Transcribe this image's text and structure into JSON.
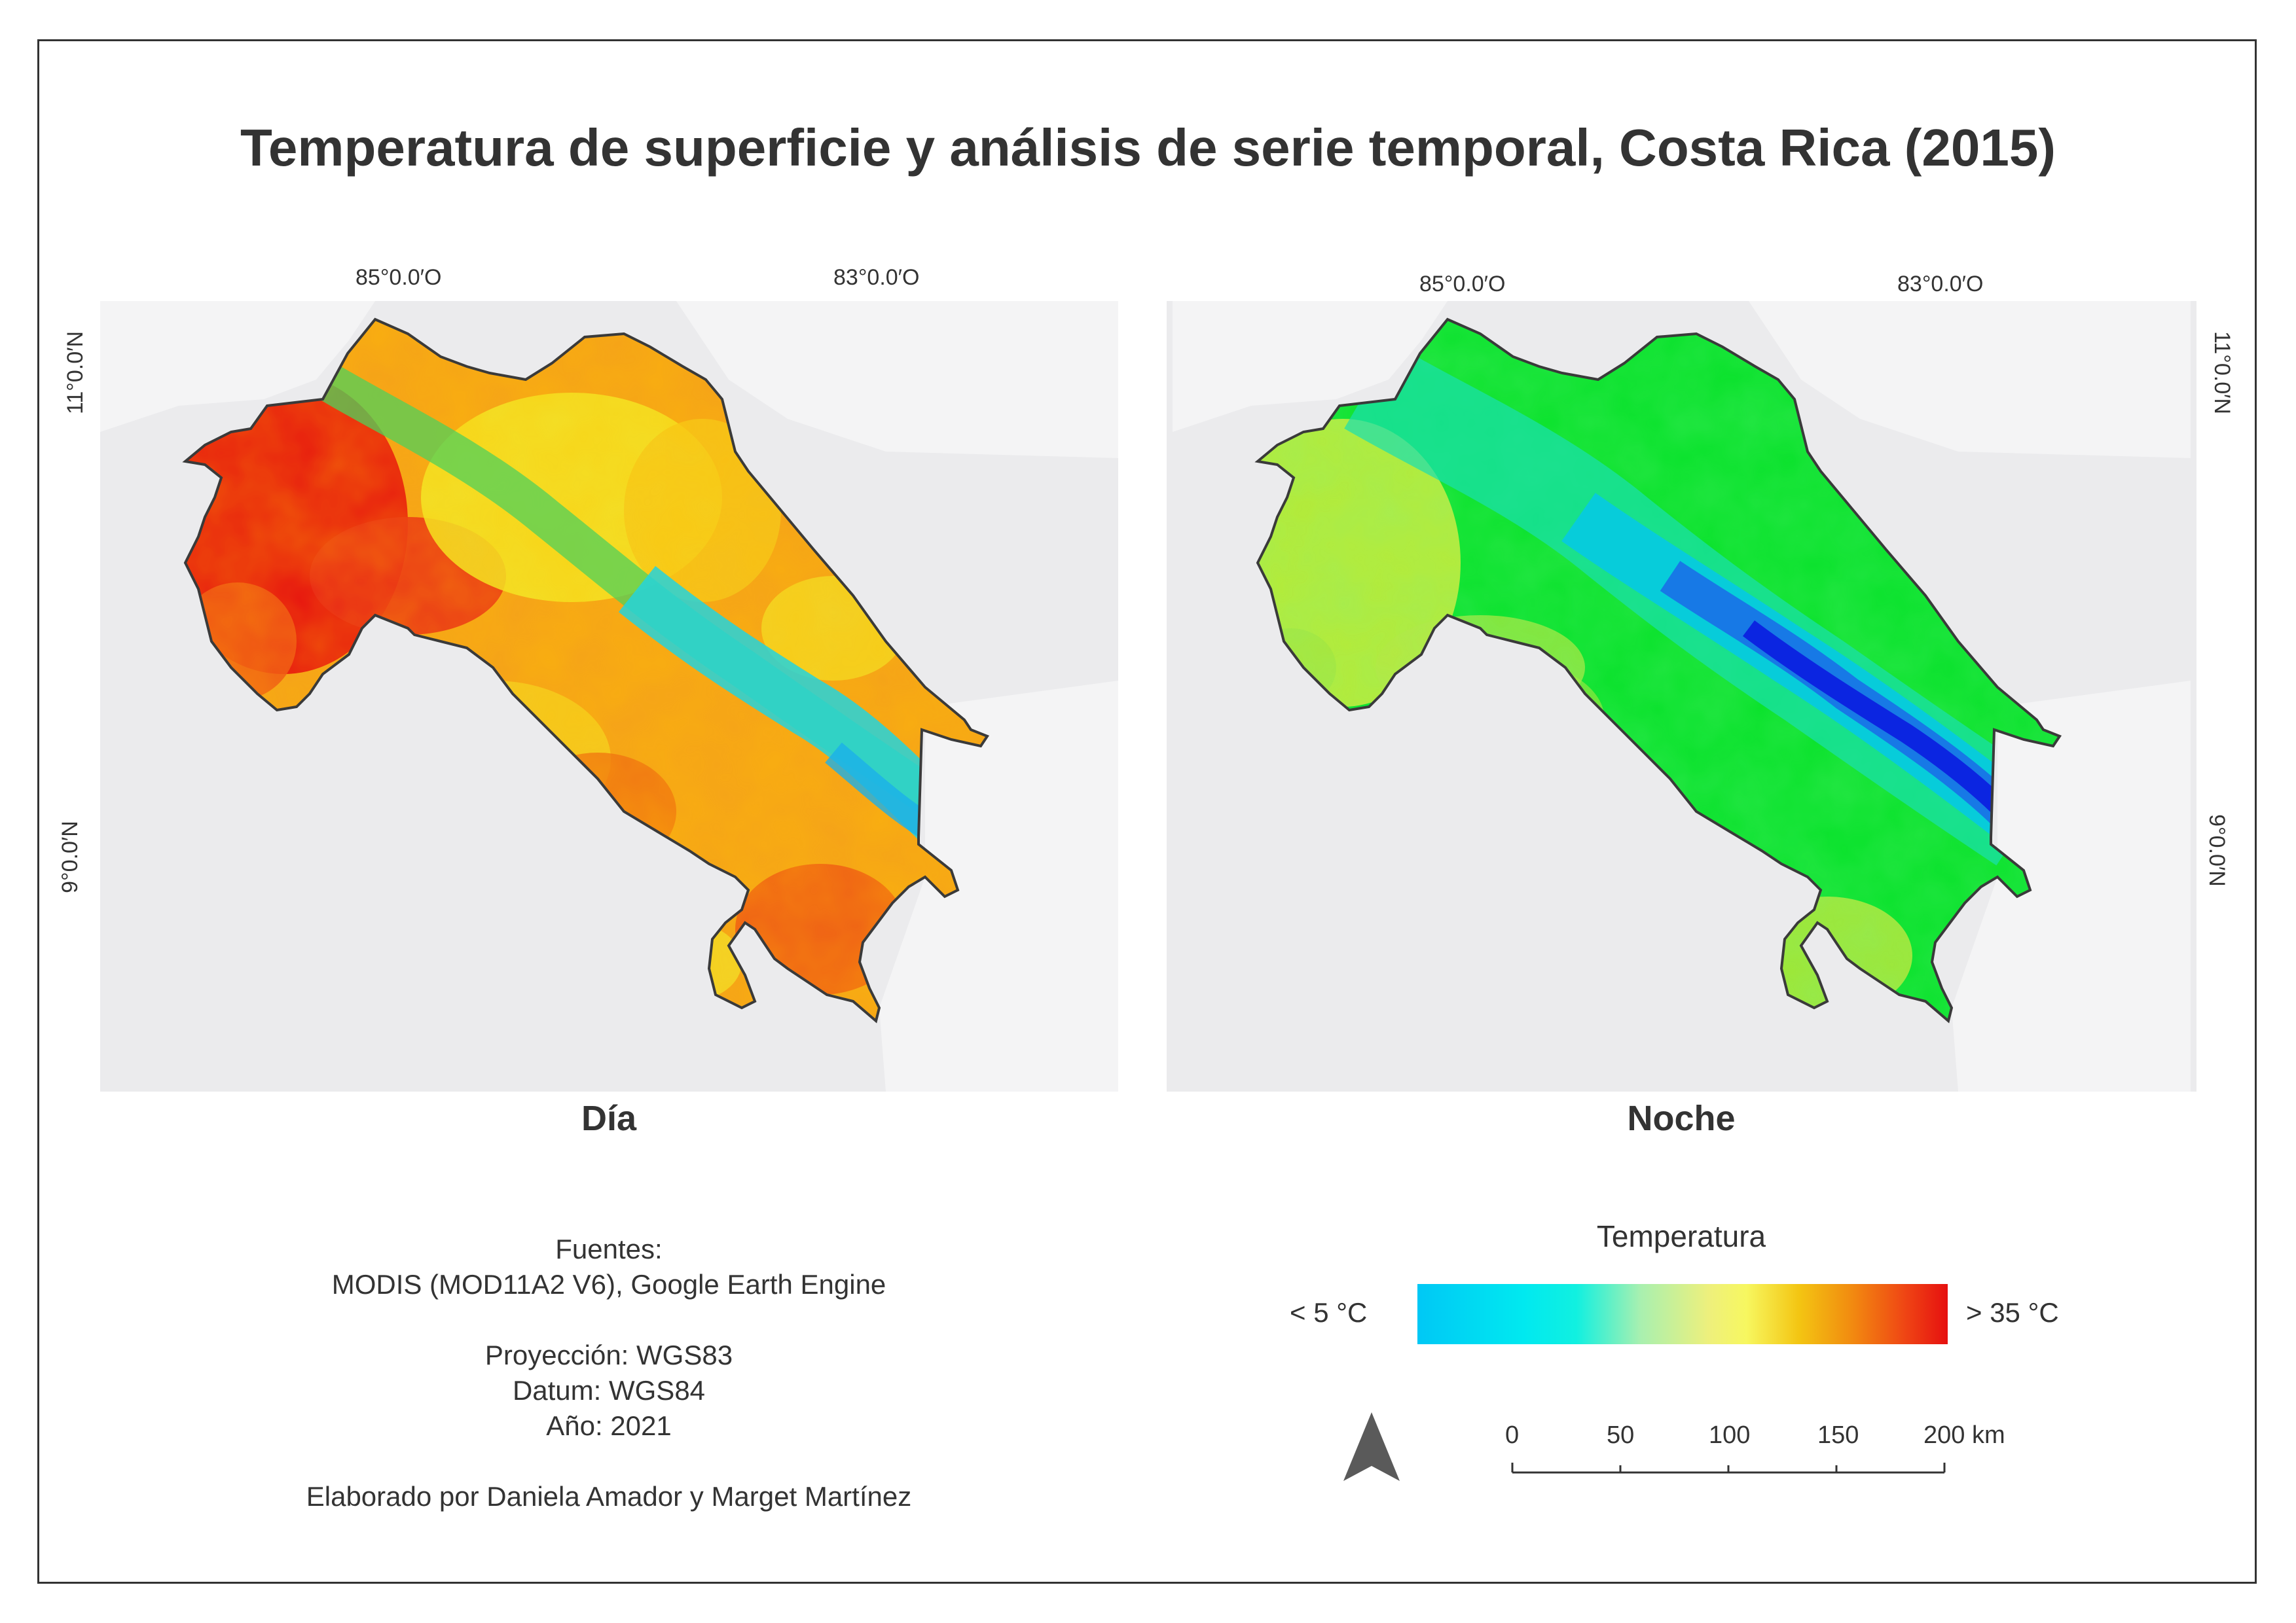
{
  "title": "Temperatura de superficie y análisis de serie temporal, Costa Rica (2015)",
  "coords": {
    "lon_west": "85°0.0′O",
    "lon_east": "83°0.0′O",
    "lat_north": "11°0.0′N",
    "lat_south": "9°0.0′N"
  },
  "maps": [
    {
      "label": "Día"
    },
    {
      "label": "Noche"
    }
  ],
  "sources": {
    "line1": "Fuentes:",
    "line2": "MODIS (MOD11A2 V6), Google Earth Engine",
    "line3": "Proyección: WGS83",
    "line4": "Datum: WGS84",
    "line5": "Año: 2021",
    "line6": "Elaborado por Daniela Amador y Marget Martínez"
  },
  "legend": {
    "title": "Temperatura",
    "min_label": "< 5 °C",
    "max_label": "> 35 °C"
  },
  "scale_bar": {
    "ticks": [
      "0",
      "50",
      "100",
      "150",
      "200 km"
    ]
  },
  "colors": {
    "frame": "#333333",
    "map_background": "#ebebed",
    "day_hot": "#e61010",
    "day_warm": "#f5a21a",
    "day_mild": "#f2ea2a",
    "night_green": "#08e22a",
    "night_cyan": "#05d8e4",
    "night_blue": "#0a1ce0"
  }
}
